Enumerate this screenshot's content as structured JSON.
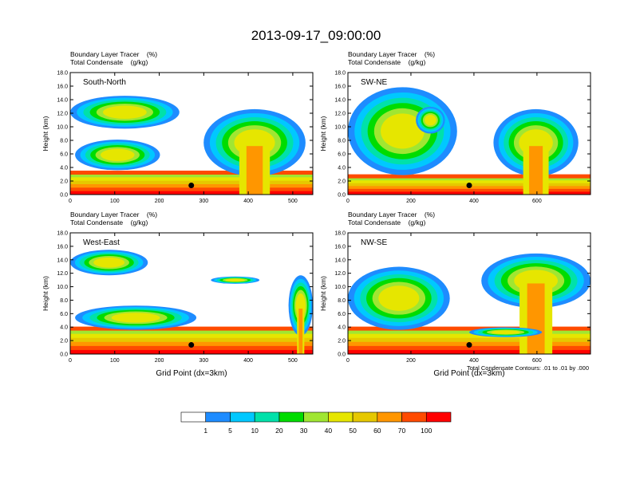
{
  "title": "2013-09-17_09:00:00",
  "colors": {
    "levels": [
      "#ffffff",
      "#1e8cff",
      "#00c8ff",
      "#00e1aa",
      "#00dc00",
      "#a0e632",
      "#e6e600",
      "#e6c800",
      "#ff9600",
      "#ff4b00",
      "#ff0000"
    ]
  },
  "colorbar": {
    "labels": [
      "1",
      "5",
      "10",
      "20",
      "30",
      "40",
      "50",
      "60",
      "70",
      "100"
    ]
  },
  "contour_note": "Total Condensate Contours: .01 to .01 by .000",
  "chart_data": [
    {
      "type": "heatmap",
      "title": "South-North",
      "header_line1": "Boundary Layer Tracer    (%)",
      "header_line2": "Total Condensate    (g/kg)",
      "ylabel": "Height (km)",
      "xlabel": "",
      "xlim": [
        0,
        545
      ],
      "ylim": [
        0,
        18
      ],
      "x_ticks": [
        "0",
        "100",
        "200",
        "300",
        "400",
        "500"
      ],
      "y_ticks": [
        "0.0",
        "2.0",
        "4.0",
        "6.0",
        "8.0",
        "10.0",
        "12.0",
        "14.0",
        "16.0",
        "18.0"
      ],
      "marker": [
        272,
        1
      ]
    },
    {
      "type": "heatmap",
      "title": "SW-NE",
      "header_line1": "Boundary Layer Tracer    (%)",
      "header_line2": "Total Condensate    (g/kg)",
      "ylabel": "Height (km)",
      "xlabel": "",
      "xlim": [
        0,
        770
      ],
      "ylim": [
        0,
        18
      ],
      "x_ticks": [
        "0",
        "200",
        "400",
        "600"
      ],
      "y_ticks": [
        "0.0",
        "2.0",
        "4.0",
        "6.0",
        "8.0",
        "10.0",
        "12.0",
        "14.0",
        "16.0",
        "18.0"
      ],
      "marker": [
        385,
        1
      ]
    },
    {
      "type": "heatmap",
      "title": "West-East",
      "header_line1": "Boundary Layer Tracer    (%)",
      "header_line2": "Total Condensate    (g/kg)",
      "ylabel": "Height (km)",
      "xlabel": "Grid Point (dx=3km)",
      "xlim": [
        0,
        545
      ],
      "ylim": [
        0,
        18
      ],
      "x_ticks": [
        "0",
        "100",
        "200",
        "300",
        "400",
        "500"
      ],
      "y_ticks": [
        "0.0",
        "2.0",
        "4.0",
        "6.0",
        "8.0",
        "10.0",
        "12.0",
        "14.0",
        "16.0",
        "18.0"
      ],
      "marker": [
        272,
        1
      ]
    },
    {
      "type": "heatmap",
      "title": "NW-SE",
      "header_line1": "Boundary Layer Tracer    (%)",
      "header_line2": "Total Condensate    (g/kg)",
      "ylabel": "Height (km)",
      "xlabel": "Grid Point (dx=3km)",
      "xlim": [
        0,
        770
      ],
      "ylim": [
        0,
        18
      ],
      "x_ticks": [
        "0",
        "200",
        "400",
        "600"
      ],
      "y_ticks": [
        "0.0",
        "2.0",
        "4.0",
        "6.0",
        "8.0",
        "10.0",
        "12.0",
        "14.0",
        "16.0",
        "18.0"
      ],
      "marker": [
        385,
        1
      ]
    }
  ]
}
